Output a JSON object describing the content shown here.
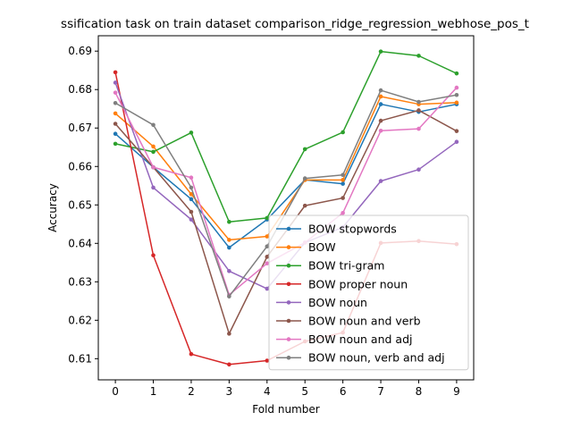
{
  "chart_data": {
    "type": "line",
    "title": "ssification task on train dataset comparison_ridge_regression_webhose_pos_t",
    "xlabel": "Fold number",
    "ylabel": "Accuracy",
    "x": [
      0,
      1,
      2,
      3,
      4,
      5,
      6,
      7,
      8,
      9
    ],
    "x_ticks": [
      "0",
      "1",
      "2",
      "3",
      "4",
      "5",
      "6",
      "7",
      "8",
      "9"
    ],
    "y_ticks": [
      "0.61",
      "0.62",
      "0.63",
      "0.64",
      "0.65",
      "0.66",
      "0.67",
      "0.68",
      "0.69"
    ],
    "xlim": [
      -0.45,
      9.45
    ],
    "ylim": [
      0.6045,
      0.694
    ],
    "grid": false,
    "legend_position": "lower-right",
    "series": [
      {
        "name": "BOW stopwords",
        "color": "#1f77b4",
        "values": [
          0.6685,
          0.6598,
          0.6515,
          0.6389,
          0.6462,
          0.6565,
          0.6555,
          0.6762,
          0.6742,
          0.6762
        ]
      },
      {
        "name": "BOW",
        "color": "#ff7f0e",
        "values": [
          0.6738,
          0.6652,
          0.6528,
          0.6409,
          0.6418,
          0.6565,
          0.6565,
          0.6782,
          0.6762,
          0.6766
        ]
      },
      {
        "name": "BOW tri-gram",
        "color": "#2ca02c",
        "values": [
          0.6659,
          0.6638,
          0.6688,
          0.6456,
          0.6466,
          0.6645,
          0.6689,
          0.6899,
          0.6888,
          0.6842
        ]
      },
      {
        "name": "BOW proper noun",
        "color": "#d62728",
        "values": [
          0.6845,
          0.6369,
          0.6112,
          0.6085,
          0.6095,
          0.6145,
          0.6168,
          0.6401,
          0.6406,
          0.6398
        ]
      },
      {
        "name": "BOW noun",
        "color": "#9467bd",
        "values": [
          0.6818,
          0.6545,
          0.6462,
          0.6328,
          0.6282,
          0.6402,
          0.6442,
          0.6562,
          0.6592,
          0.6664
        ]
      },
      {
        "name": "BOW noun and verb",
        "color": "#8c564b",
        "values": [
          0.6711,
          0.6598,
          0.6482,
          0.6165,
          0.6365,
          0.6498,
          0.6518,
          0.6719,
          0.6746,
          0.6692
        ]
      },
      {
        "name": "BOW noun and adj",
        "color": "#e377c2",
        "values": [
          0.6792,
          0.6598,
          0.6571,
          0.6266,
          0.6348,
          0.6402,
          0.6479,
          0.6693,
          0.6698,
          0.6805
        ]
      },
      {
        "name": "BOW noun, verb and adj",
        "color": "#7f7f7f",
        "values": [
          0.6765,
          0.6708,
          0.6545,
          0.6262,
          0.6392,
          0.6569,
          0.6578,
          0.6798,
          0.6768,
          0.6786
        ]
      }
    ]
  }
}
